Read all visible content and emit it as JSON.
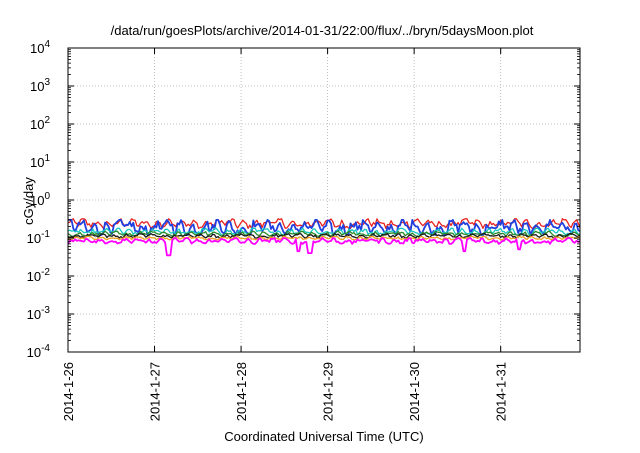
{
  "chart_data": {
    "type": "line",
    "title": "/data/run/goesPlots/archive/2014-01-31/22:00/flux/../bryn/5daysMoon.plot",
    "xlabel": "Coordinated Universal Time (UTC)",
    "ylabel": "cGy/day",
    "y_scale": "log",
    "ylim": [
      0.0001,
      10000
    ],
    "xlim": [
      "2014-01-26",
      "2014-01-31T22:00"
    ],
    "grid": true,
    "legend": "none",
    "x_ticks": [
      "2014-1-26",
      "2014-1-27",
      "2014-1-28",
      "2014-1-29",
      "2014-1-30",
      "2014-1-31"
    ],
    "y_ticks": [
      {
        "value": 0.0001,
        "base": "10",
        "exp": "-4"
      },
      {
        "value": 0.001,
        "base": "10",
        "exp": "-3"
      },
      {
        "value": 0.01,
        "base": "10",
        "exp": "-2"
      },
      {
        "value": 0.1,
        "base": "10",
        "exp": "-1"
      },
      {
        "value": 1,
        "base": "10",
        "exp": "0"
      },
      {
        "value": 10,
        "base": "10",
        "exp": "1"
      },
      {
        "value": 100,
        "base": "10",
        "exp": "2"
      },
      {
        "value": 1000,
        "base": "10",
        "exp": "3"
      },
      {
        "value": 10000,
        "base": "10",
        "exp": "4"
      }
    ],
    "series": [
      {
        "color": "#e8231f",
        "base": 0.24,
        "typical_range": [
          0.18,
          0.32
        ]
      },
      {
        "color": "#1f3fe0",
        "base": 0.2,
        "typical_range": [
          0.12,
          0.3
        ]
      },
      {
        "color": "#18c8c0",
        "base": 0.15,
        "typical_range": [
          0.12,
          0.18
        ]
      },
      {
        "color": "#2a8a2a",
        "base": 0.13,
        "typical_range": [
          0.11,
          0.15
        ]
      },
      {
        "color": "#1a1a1a",
        "base": 0.115,
        "typical_range": [
          0.1,
          0.13
        ]
      },
      {
        "color": "#f0a020",
        "base": 0.1,
        "typical_range": [
          0.09,
          0.11
        ]
      },
      {
        "color": "#ff00ff",
        "base": 0.085,
        "typical_range": [
          0.07,
          0.1
        ],
        "dips": [
          {
            "t": "2014-01-27T04:00",
            "value": 0.035
          },
          {
            "t": "2014-01-28T16:00",
            "value": 0.045
          },
          {
            "t": "2014-01-28T19:00",
            "value": 0.04
          },
          {
            "t": "2014-01-30T14:00",
            "value": 0.045
          },
          {
            "t": "2014-01-31T05:00",
            "value": 0.05
          }
        ]
      }
    ]
  }
}
